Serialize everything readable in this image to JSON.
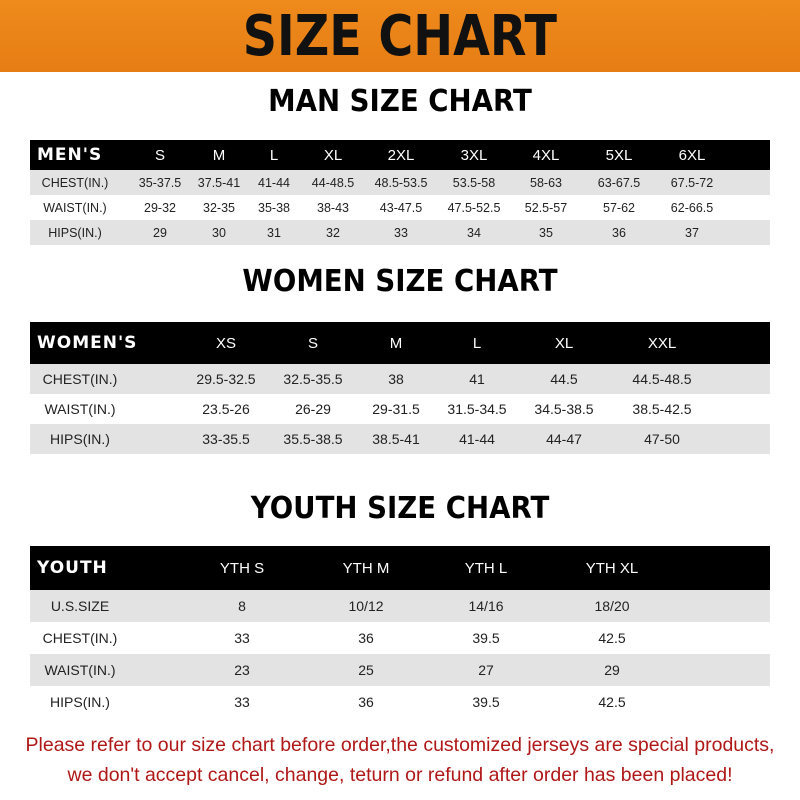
{
  "banner": {
    "title": "SIZE CHART",
    "color": "#e98316"
  },
  "men": {
    "heading": "MAN SIZE CHART",
    "columns": [
      "MEN'S",
      "S",
      "M",
      "L",
      "XL",
      "2XL",
      "3XL",
      "4XL",
      "5XL",
      "6XL"
    ],
    "rows": [
      [
        "CHEST(IN.)",
        "35-37.5",
        "37.5-41",
        "41-44",
        "44-48.5",
        "48.5-53.5",
        "53.5-58",
        "58-63",
        "63-67.5",
        "67.5-72"
      ],
      [
        "WAIST(IN.)",
        "29-32",
        "32-35",
        "35-38",
        "38-43",
        "43-47.5",
        "47.5-52.5",
        "52.5-57",
        "57-62",
        "62-66.5"
      ],
      [
        "HIPS(IN.)",
        "29",
        "30",
        "31",
        "32",
        "33",
        "34",
        "35",
        "36",
        "37"
      ]
    ]
  },
  "women": {
    "heading": "WOMEN SIZE CHART",
    "columns": [
      "WOMEN'S",
      "XS",
      "S",
      "M",
      "L",
      "XL",
      "XXL"
    ],
    "rows": [
      [
        "CHEST(IN.)",
        "29.5-32.5",
        "32.5-35.5",
        "38",
        "41",
        "44.5",
        "44.5-48.5"
      ],
      [
        "WAIST(IN.)",
        "23.5-26",
        "26-29",
        "29-31.5",
        "31.5-34.5",
        "34.5-38.5",
        "38.5-42.5"
      ],
      [
        "HIPS(IN.)",
        "33-35.5",
        "35.5-38.5",
        "38.5-41",
        "41-44",
        "44-47",
        "47-50"
      ]
    ]
  },
  "youth": {
    "heading": "YOUTH SIZE CHART",
    "columns": [
      "YOUTH",
      "YTH S",
      "YTH M",
      "YTH L",
      "YTH XL"
    ],
    "rows": [
      [
        "U.S.SIZE",
        "8",
        "10/12",
        "14/16",
        "18/20"
      ],
      [
        "CHEST(IN.)",
        "33",
        "36",
        "39.5",
        "42.5"
      ],
      [
        "WAIST(IN.)",
        "23",
        "25",
        "27",
        "29"
      ],
      [
        "HIPS(IN.)",
        "33",
        "36",
        "39.5",
        "42.5"
      ]
    ]
  },
  "footer": {
    "line1": "Please refer to our size chart before order,the customized jerseys are special products,",
    "line2": "we don't accept cancel, change, teturn or refund after order has been placed!",
    "color": "#b01818"
  }
}
